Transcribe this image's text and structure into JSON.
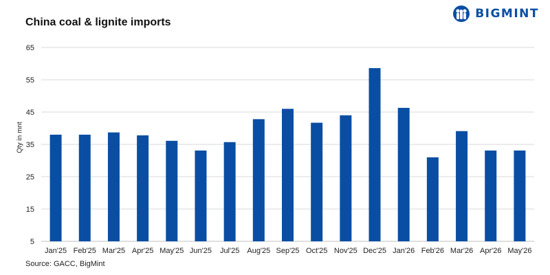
{
  "header": {
    "title": "China coal & lignite imports",
    "brand_name": "BIGMINT",
    "brand_icon": "bigmint-logo-icon",
    "brand_color": "#0a4ea3"
  },
  "footer": {
    "source": "Source: GACC, BigMint"
  },
  "chart_data": {
    "type": "bar",
    "title": "China coal & lignite imports",
    "xlabel": "",
    "ylabel": "Qty in mnt",
    "ylim": [
      5,
      65
    ],
    "yticks": [
      5,
      15,
      25,
      35,
      45,
      55,
      65
    ],
    "grid": true,
    "bar_color": "#0a4ea3",
    "categories": [
      "Jan'25",
      "Feb'25",
      "Mar'25",
      "Apr'25",
      "May'25",
      "Jun'25",
      "Jul'25",
      "Aug'25",
      "Sep'25",
      "Oct'25",
      "Nov'25",
      "Dec'25",
      "Jan'26",
      "Feb'26",
      "Mar'26",
      "Apr'26",
      "May'26"
    ],
    "values": [
      38.0,
      38.0,
      38.7,
      37.8,
      36.1,
      33.1,
      35.7,
      42.8,
      46.0,
      41.7,
      44.0,
      58.6,
      46.3,
      31.0,
      39.1,
      33.1,
      33.1
    ]
  }
}
